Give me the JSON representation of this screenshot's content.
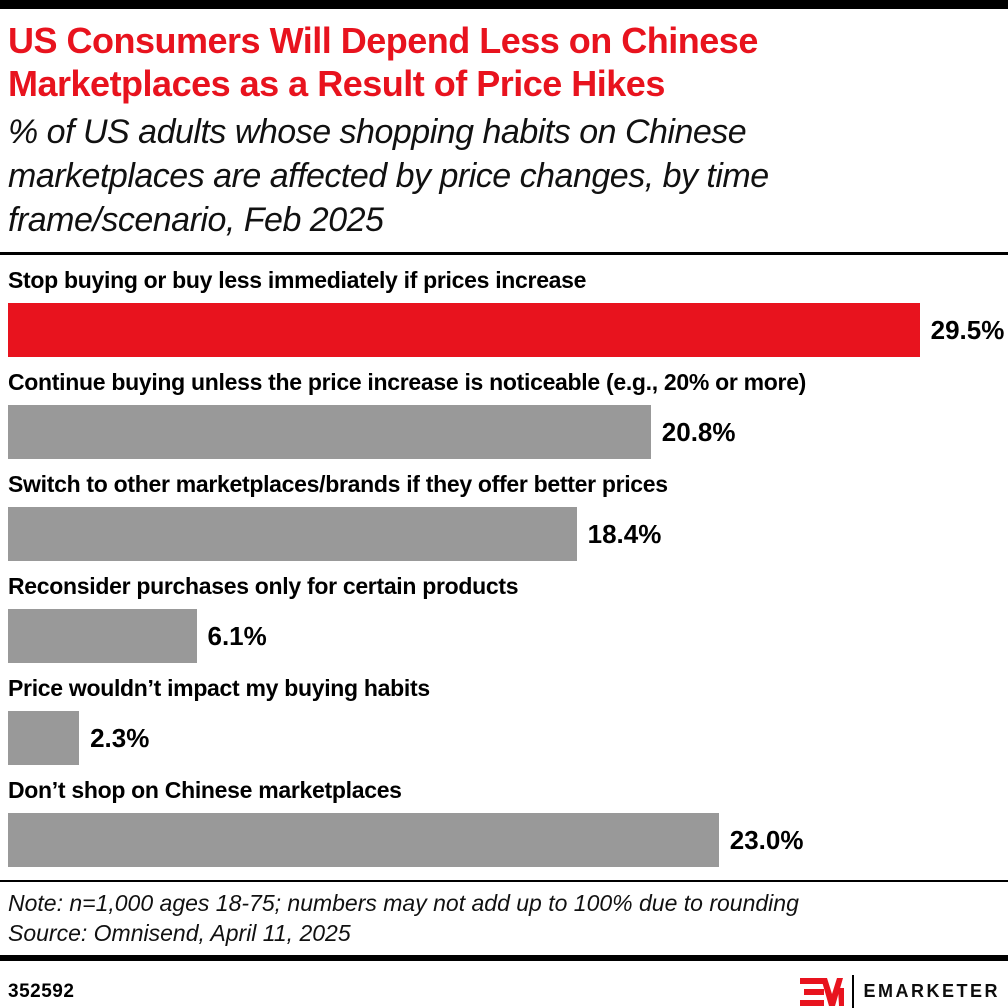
{
  "header": {
    "title": "US Consumers Will Depend Less on Chinese\nMarketplaces as a Result of Price Hikes",
    "subtitle": "% of US adults whose shopping habits on Chinese\nmarketplaces are affected by price changes, by time\nframe/scenario, Feb 2025"
  },
  "chart_data": {
    "type": "bar",
    "orientation": "horizontal",
    "title": "US Consumers Will Depend Less on Chinese Marketplaces as a Result of Price Hikes",
    "subtitle": "% of US adults whose shopping habits on Chinese marketplaces are affected by price changes, by time frame/scenario, Feb 2025",
    "categories": [
      "Stop buying or buy less immediately if prices increase",
      "Continue buying unless the price increase is noticeable (e.g., 20% or more)",
      "Switch to other marketplaces/brands if they offer better prices",
      "Reconsider purchases only for certain products",
      "Price wouldn’t impact my buying habits",
      "Don’t shop on Chinese marketplaces"
    ],
    "values": [
      29.5,
      20.8,
      18.4,
      6.1,
      2.3,
      23.0
    ],
    "value_labels": [
      "29.5%",
      "20.8%",
      "18.4%",
      "6.1%",
      "2.3%",
      "23.0%"
    ],
    "bar_colors": [
      "#e8131e",
      "#999999",
      "#999999",
      "#999999",
      "#999999",
      "#999999"
    ],
    "xlim": [
      0,
      32.1
    ],
    "grid": "off",
    "legend": "none",
    "value_label_position": "right-of-bar"
  },
  "footer": {
    "note": "Note: n=1,000 ages 18-75; numbers may not add up to 100% due to rounding",
    "source": "Source: Omnisend, April 11, 2025",
    "chart_id": "352592",
    "brand": "EMARKETER"
  },
  "colors": {
    "accent_red": "#e8131e",
    "bar_gray": "#999999",
    "text_black": "#000000"
  }
}
